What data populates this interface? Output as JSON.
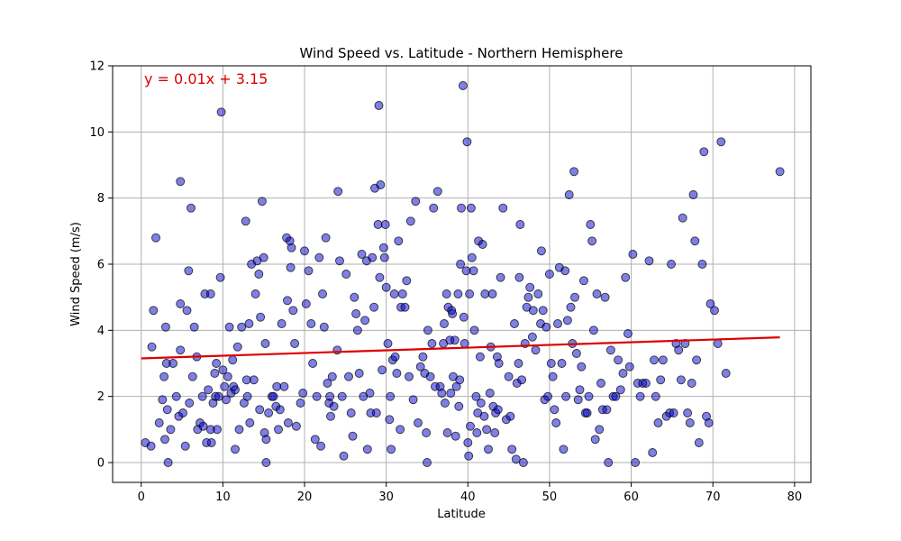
{
  "chart_data": {
    "type": "scatter",
    "title": "Wind Speed vs. Latitude - Northern Hemisphere",
    "xlabel": "Latitude",
    "ylabel": "Wind Speed (m/s)",
    "xlim": [
      -3.5,
      82
    ],
    "ylim": [
      -0.6,
      12
    ],
    "xticks": [
      0,
      10,
      20,
      30,
      40,
      50,
      60,
      70,
      80
    ],
    "yticks": [
      0,
      2,
      4,
      6,
      8,
      10,
      12
    ],
    "grid": true,
    "point_color": "#0000cc",
    "line_color": "#dd0000",
    "regression": {
      "equation": "y = 0.01x + 3.15",
      "slope": 0.00815,
      "intercept": 3.15,
      "x_range": [
        0,
        78.2
      ]
    },
    "points": [
      [
        0.5,
        0.6
      ],
      [
        1.2,
        0.5
      ],
      [
        1.3,
        3.5
      ],
      [
        1.5,
        4.6
      ],
      [
        1.8,
        6.8
      ],
      [
        2.2,
        1.2
      ],
      [
        2.6,
        1.9
      ],
      [
        2.8,
        2.6
      ],
      [
        2.9,
        0.7
      ],
      [
        3.0,
        4.1
      ],
      [
        3.1,
        3.0
      ],
      [
        3.2,
        1.6
      ],
      [
        3.3,
        0.0
      ],
      [
        3.6,
        1.0
      ],
      [
        3.9,
        3.0
      ],
      [
        4.3,
        2.0
      ],
      [
        4.6,
        1.4
      ],
      [
        4.8,
        3.4
      ],
      [
        4.8,
        4.8
      ],
      [
        4.8,
        8.5
      ],
      [
        5.1,
        1.5
      ],
      [
        5.4,
        0.5
      ],
      [
        5.6,
        4.6
      ],
      [
        5.8,
        5.8
      ],
      [
        5.9,
        1.8
      ],
      [
        6.1,
        7.7
      ],
      [
        6.3,
        2.6
      ],
      [
        6.5,
        4.1
      ],
      [
        6.8,
        3.2
      ],
      [
        6.9,
        1.0
      ],
      [
        7.2,
        1.2
      ],
      [
        7.5,
        2.0
      ],
      [
        7.6,
        1.1
      ],
      [
        7.8,
        5.1
      ],
      [
        8.0,
        0.6
      ],
      [
        8.2,
        2.2
      ],
      [
        8.5,
        1.0
      ],
      [
        8.5,
        5.1
      ],
      [
        8.6,
        0.6
      ],
      [
        8.8,
        1.8
      ],
      [
        9.0,
        2.7
      ],
      [
        9.1,
        2.0
      ],
      [
        9.2,
        3.0
      ],
      [
        9.3,
        1.0
      ],
      [
        9.5,
        2.0
      ],
      [
        9.7,
        5.6
      ],
      [
        9.8,
        10.6
      ],
      [
        10.0,
        2.8
      ],
      [
        10.2,
        2.3
      ],
      [
        10.4,
        1.9
      ],
      [
        10.6,
        2.6
      ],
      [
        10.8,
        4.1
      ],
      [
        11.0,
        2.1
      ],
      [
        11.2,
        3.1
      ],
      [
        11.3,
        2.3
      ],
      [
        11.5,
        0.4
      ],
      [
        11.5,
        2.2
      ],
      [
        11.8,
        3.5
      ],
      [
        12.0,
        1.0
      ],
      [
        12.3,
        4.1
      ],
      [
        12.6,
        1.8
      ],
      [
        12.8,
        7.3
      ],
      [
        12.9,
        2.5
      ],
      [
        13.0,
        2.0
      ],
      [
        13.2,
        4.2
      ],
      [
        13.3,
        1.2
      ],
      [
        13.5,
        6.0
      ],
      [
        13.8,
        2.5
      ],
      [
        14.0,
        5.1
      ],
      [
        14.2,
        6.1
      ],
      [
        14.4,
        5.7
      ],
      [
        14.5,
        1.6
      ],
      [
        14.6,
        4.4
      ],
      [
        14.8,
        7.9
      ],
      [
        15.0,
        6.2
      ],
      [
        15.1,
        0.9
      ],
      [
        15.2,
        3.6
      ],
      [
        15.3,
        0.0
      ],
      [
        15.3,
        0.7
      ],
      [
        15.6,
        1.5
      ],
      [
        16.0,
        2.0
      ],
      [
        16.2,
        2.0
      ],
      [
        16.5,
        1.7
      ],
      [
        16.6,
        2.3
      ],
      [
        16.8,
        1.0
      ],
      [
        17.0,
        1.6
      ],
      [
        17.2,
        4.2
      ],
      [
        17.5,
        2.3
      ],
      [
        17.8,
        6.8
      ],
      [
        17.9,
        4.9
      ],
      [
        18.0,
        1.2
      ],
      [
        18.2,
        6.7
      ],
      [
        18.3,
        5.9
      ],
      [
        18.4,
        6.5
      ],
      [
        18.6,
        4.6
      ],
      [
        18.8,
        3.6
      ],
      [
        19.0,
        1.1
      ],
      [
        19.5,
        1.8
      ],
      [
        19.8,
        2.1
      ],
      [
        20.0,
        6.4
      ],
      [
        20.2,
        4.8
      ],
      [
        20.5,
        5.8
      ],
      [
        20.8,
        4.2
      ],
      [
        21.0,
        3.0
      ],
      [
        21.3,
        0.7
      ],
      [
        21.5,
        2.0
      ],
      [
        21.8,
        6.2
      ],
      [
        22.0,
        0.5
      ],
      [
        22.2,
        5.1
      ],
      [
        22.4,
        4.1
      ],
      [
        22.6,
        6.8
      ],
      [
        22.8,
        2.4
      ],
      [
        23.0,
        1.8
      ],
      [
        23.1,
        2.0
      ],
      [
        23.2,
        1.4
      ],
      [
        23.4,
        2.6
      ],
      [
        23.6,
        1.7
      ],
      [
        24.0,
        3.4
      ],
      [
        24.1,
        8.2
      ],
      [
        24.3,
        6.1
      ],
      [
        24.6,
        2.0
      ],
      [
        24.8,
        0.2
      ],
      [
        25.1,
        5.7
      ],
      [
        25.4,
        2.6
      ],
      [
        25.7,
        1.5
      ],
      [
        25.9,
        0.8
      ],
      [
        26.1,
        5.0
      ],
      [
        26.3,
        4.5
      ],
      [
        26.5,
        4.0
      ],
      [
        26.7,
        2.7
      ],
      [
        27.0,
        6.3
      ],
      [
        27.2,
        2.0
      ],
      [
        27.4,
        4.3
      ],
      [
        27.6,
        6.1
      ],
      [
        27.7,
        0.4
      ],
      [
        28.0,
        2.1
      ],
      [
        28.1,
        1.5
      ],
      [
        28.3,
        6.2
      ],
      [
        28.5,
        4.7
      ],
      [
        28.6,
        8.3
      ],
      [
        28.8,
        1.5
      ],
      [
        29.0,
        7.2
      ],
      [
        29.1,
        10.8
      ],
      [
        29.2,
        5.6
      ],
      [
        29.3,
        8.4
      ],
      [
        29.5,
        2.8
      ],
      [
        29.7,
        6.5
      ],
      [
        29.8,
        6.2
      ],
      [
        29.9,
        7.2
      ],
      [
        30.0,
        5.3
      ],
      [
        30.2,
        3.6
      ],
      [
        30.4,
        1.3
      ],
      [
        30.5,
        2.0
      ],
      [
        30.6,
        0.4
      ],
      [
        30.8,
        3.1
      ],
      [
        31.0,
        5.1
      ],
      [
        31.1,
        3.2
      ],
      [
        31.3,
        2.7
      ],
      [
        31.5,
        6.7
      ],
      [
        31.7,
        1.0
      ],
      [
        31.8,
        4.7
      ],
      [
        32.0,
        5.1
      ],
      [
        32.3,
        4.7
      ],
      [
        32.5,
        5.5
      ],
      [
        32.8,
        2.6
      ],
      [
        33.0,
        7.3
      ],
      [
        33.3,
        1.9
      ],
      [
        33.6,
        7.9
      ],
      [
        33.9,
        1.2
      ],
      [
        34.2,
        2.9
      ],
      [
        34.5,
        3.2
      ],
      [
        34.7,
        2.7
      ],
      [
        34.9,
        0.9
      ],
      [
        35.0,
        0.0
      ],
      [
        35.1,
        4.0
      ],
      [
        35.4,
        2.6
      ],
      [
        35.6,
        3.6
      ],
      [
        35.8,
        7.7
      ],
      [
        36.0,
        2.3
      ],
      [
        36.3,
        8.2
      ],
      [
        36.6,
        2.3
      ],
      [
        36.8,
        2.1
      ],
      [
        37.0,
        3.6
      ],
      [
        37.1,
        4.2
      ],
      [
        37.2,
        1.8
      ],
      [
        37.4,
        5.1
      ],
      [
        37.5,
        0.9
      ],
      [
        37.6,
        4.7
      ],
      [
        37.8,
        3.7
      ],
      [
        37.9,
        2.1
      ],
      [
        38.0,
        4.6
      ],
      [
        38.1,
        4.5
      ],
      [
        38.2,
        2.6
      ],
      [
        38.4,
        3.7
      ],
      [
        38.5,
        0.8
      ],
      [
        38.6,
        2.3
      ],
      [
        38.8,
        5.1
      ],
      [
        38.9,
        1.7
      ],
      [
        39.0,
        2.5
      ],
      [
        39.1,
        6.0
      ],
      [
        39.2,
        7.7
      ],
      [
        39.4,
        11.4
      ],
      [
        39.5,
        4.4
      ],
      [
        39.6,
        3.6
      ],
      [
        39.8,
        5.8
      ],
      [
        39.9,
        9.7
      ],
      [
        40.0,
        0.6
      ],
      [
        40.1,
        0.2
      ],
      [
        40.2,
        5.1
      ],
      [
        40.3,
        1.1
      ],
      [
        40.4,
        7.7
      ],
      [
        40.5,
        6.2
      ],
      [
        40.7,
        5.8
      ],
      [
        40.8,
        4.0
      ],
      [
        41.0,
        2.0
      ],
      [
        41.1,
        0.9
      ],
      [
        41.2,
        1.5
      ],
      [
        41.3,
        6.7
      ],
      [
        41.5,
        3.2
      ],
      [
        41.6,
        1.8
      ],
      [
        41.8,
        6.6
      ],
      [
        42.0,
        1.4
      ],
      [
        42.1,
        5.1
      ],
      [
        42.3,
        1.0
      ],
      [
        42.5,
        0.4
      ],
      [
        42.7,
        2.1
      ],
      [
        42.8,
        3.5
      ],
      [
        43.0,
        5.1
      ],
      [
        43.1,
        1.7
      ],
      [
        43.3,
        0.9
      ],
      [
        43.4,
        1.5
      ],
      [
        43.6,
        3.2
      ],
      [
        43.7,
        1.6
      ],
      [
        43.8,
        3.0
      ],
      [
        44.0,
        5.6
      ],
      [
        44.3,
        7.7
      ],
      [
        44.7,
        1.3
      ],
      [
        45.0,
        2.6
      ],
      [
        45.2,
        1.4
      ],
      [
        45.4,
        0.4
      ],
      [
        45.7,
        4.2
      ],
      [
        45.9,
        0.1
      ],
      [
        46.0,
        2.4
      ],
      [
        46.2,
        3.0
      ],
      [
        46.3,
        5.6
      ],
      [
        46.4,
        7.2
      ],
      [
        46.6,
        2.5
      ],
      [
        46.8,
        0.0
      ],
      [
        47.0,
        3.6
      ],
      [
        47.2,
        4.7
      ],
      [
        47.4,
        5.0
      ],
      [
        47.6,
        5.3
      ],
      [
        47.9,
        3.8
      ],
      [
        48.0,
        4.6
      ],
      [
        48.3,
        3.4
      ],
      [
        48.6,
        5.1
      ],
      [
        48.9,
        4.2
      ],
      [
        49.0,
        6.4
      ],
      [
        49.2,
        4.6
      ],
      [
        49.4,
        1.9
      ],
      [
        49.6,
        4.1
      ],
      [
        49.8,
        2.0
      ],
      [
        50.0,
        5.7
      ],
      [
        50.2,
        3.0
      ],
      [
        50.4,
        2.6
      ],
      [
        50.6,
        1.6
      ],
      [
        50.8,
        1.2
      ],
      [
        51.0,
        4.2
      ],
      [
        51.2,
        5.9
      ],
      [
        51.5,
        3.0
      ],
      [
        51.7,
        0.4
      ],
      [
        51.9,
        5.8
      ],
      [
        52.0,
        2.0
      ],
      [
        52.2,
        4.3
      ],
      [
        52.4,
        8.1
      ],
      [
        52.6,
        4.7
      ],
      [
        52.8,
        3.6
      ],
      [
        53.0,
        8.8
      ],
      [
        53.1,
        5.0
      ],
      [
        53.3,
        3.3
      ],
      [
        53.5,
        1.9
      ],
      [
        53.7,
        2.2
      ],
      [
        53.9,
        2.9
      ],
      [
        54.2,
        5.5
      ],
      [
        54.4,
        1.5
      ],
      [
        54.6,
        1.5
      ],
      [
        54.8,
        2.0
      ],
      [
        55.0,
        7.2
      ],
      [
        55.2,
        6.7
      ],
      [
        55.4,
        4.0
      ],
      [
        55.6,
        0.7
      ],
      [
        55.8,
        5.1
      ],
      [
        56.1,
        1.0
      ],
      [
        56.3,
        2.4
      ],
      [
        56.5,
        1.6
      ],
      [
        56.8,
        5.0
      ],
      [
        57.0,
        1.6
      ],
      [
        57.2,
        0.0
      ],
      [
        57.5,
        3.4
      ],
      [
        57.8,
        2.0
      ],
      [
        58.1,
        2.0
      ],
      [
        58.4,
        3.1
      ],
      [
        58.7,
        2.2
      ],
      [
        59.0,
        2.7
      ],
      [
        59.3,
        5.6
      ],
      [
        59.6,
        3.9
      ],
      [
        59.8,
        2.9
      ],
      [
        60.2,
        6.3
      ],
      [
        60.5,
        0.0
      ],
      [
        60.8,
        2.4
      ],
      [
        61.1,
        2.0
      ],
      [
        61.4,
        2.4
      ],
      [
        61.8,
        2.4
      ],
      [
        62.2,
        6.1
      ],
      [
        62.6,
        0.3
      ],
      [
        62.8,
        3.1
      ],
      [
        63.0,
        2.0
      ],
      [
        63.3,
        1.2
      ],
      [
        63.6,
        2.5
      ],
      [
        63.9,
        3.1
      ],
      [
        64.3,
        1.4
      ],
      [
        64.7,
        1.5
      ],
      [
        64.9,
        6.0
      ],
      [
        65.2,
        1.5
      ],
      [
        65.5,
        3.6
      ],
      [
        65.8,
        3.4
      ],
      [
        66.1,
        2.5
      ],
      [
        66.3,
        7.4
      ],
      [
        66.6,
        3.6
      ],
      [
        66.9,
        1.5
      ],
      [
        67.2,
        1.2
      ],
      [
        67.4,
        2.4
      ],
      [
        67.6,
        8.1
      ],
      [
        67.8,
        6.7
      ],
      [
        68.0,
        3.1
      ],
      [
        68.3,
        0.6
      ],
      [
        68.7,
        6.0
      ],
      [
        68.9,
        9.4
      ],
      [
        69.2,
        1.4
      ],
      [
        69.5,
        1.2
      ],
      [
        69.7,
        4.8
      ],
      [
        70.2,
        4.6
      ],
      [
        70.6,
        3.6
      ],
      [
        71.0,
        9.7
      ],
      [
        71.6,
        2.7
      ],
      [
        78.2,
        8.8
      ]
    ]
  }
}
